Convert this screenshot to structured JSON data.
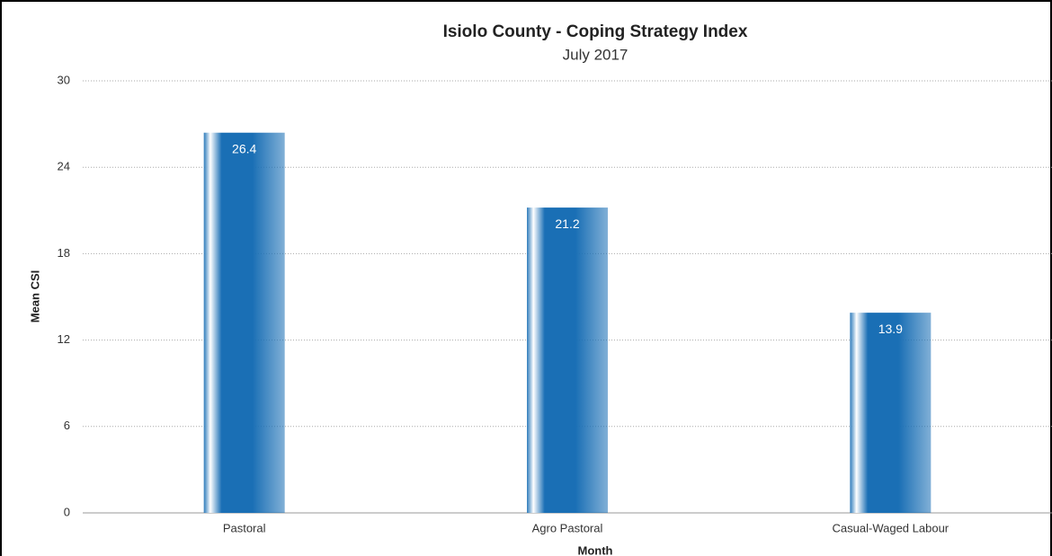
{
  "chart_data": {
    "type": "bar",
    "title": "Isiolo County - Coping Strategy Index",
    "subtitle": "July 2017",
    "x_label": "Month",
    "y_label": "Mean CSI",
    "categories": [
      "Pastoral",
      "Agro Pastoral",
      "Casual-Waged Labour"
    ],
    "values": [
      26.4,
      21.2,
      13.9
    ],
    "color": "#1a6fb5",
    "ylim": [
      0,
      30
    ],
    "yticks": [
      0,
      6,
      12,
      18,
      24,
      30
    ],
    "grid": true
  }
}
